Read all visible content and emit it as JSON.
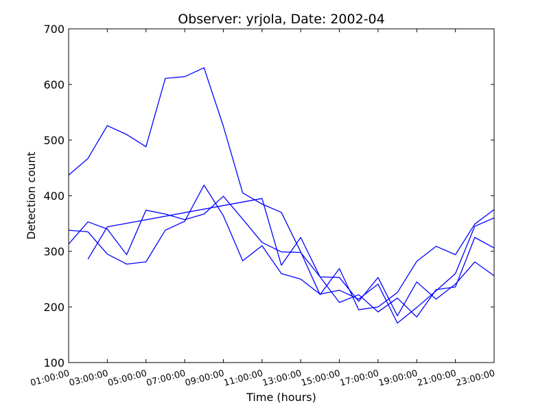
{
  "chart_data": {
    "type": "line",
    "title": "Observer: yrjola, Date: 2002-04",
    "xlabel": "Time (hours)",
    "ylabel": "Detection count",
    "ylim": [
      100,
      700
    ],
    "y_ticks": [
      "100",
      "200",
      "300",
      "400",
      "500",
      "600",
      "700"
    ],
    "x_ticks": [
      "01:00:00",
      "03:00:00",
      "05:00:00",
      "07:00:00",
      "09:00:00",
      "11:00:00",
      "13:00:00",
      "15:00:00",
      "17:00:00",
      "19:00:00",
      "21:00:00",
      "23:00:00"
    ],
    "x_hours_range": [
      1,
      23
    ],
    "grid": false,
    "line_color": "#0000ff",
    "series": [
      {
        "x_hours": [
          1,
          2,
          3,
          4,
          5,
          6,
          7,
          8,
          9,
          10,
          11,
          12,
          13,
          14,
          15,
          16,
          17,
          18,
          19,
          20,
          21,
          22,
          23
        ],
        "values": [
          437,
          467,
          526,
          510,
          488,
          611,
          614,
          630,
          525,
          405,
          385,
          370,
          299,
          222,
          269,
          195,
          200,
          226,
          282,
          309,
          294,
          349,
          375
        ]
      },
      {
        "x_hours": [
          1,
          2,
          3,
          4,
          5,
          6,
          7,
          8,
          9,
          10,
          11,
          12,
          13,
          14,
          15,
          16,
          17,
          18,
          19,
          20,
          21,
          22,
          23
        ],
        "values": [
          338,
          335,
          295,
          277,
          281,
          338,
          354,
          419,
          364,
          283,
          310,
          260,
          250,
          223,
          230,
          214,
          241,
          171,
          199,
          229,
          260,
          345,
          360
        ]
      },
      {
        "x_hours": [
          1,
          2,
          3,
          4,
          5,
          6,
          7,
          8,
          9,
          10,
          11,
          12,
          13,
          14,
          15,
          16,
          17,
          18,
          19,
          20,
          21,
          22,
          23
        ],
        "values": [
          313,
          353,
          340,
          294,
          374,
          367,
          357,
          367,
          399,
          358,
          316,
          299,
          298,
          254,
          208,
          222,
          191,
          216,
          182,
          231,
          236,
          325,
          306
        ]
      },
      {
        "x_hours": [
          2,
          3,
          11,
          12,
          13,
          14,
          15,
          16,
          17,
          18,
          19,
          20,
          21,
          22,
          23
        ],
        "values": [
          286,
          344,
          395,
          275,
          325,
          254,
          253,
          210,
          253,
          184,
          245,
          214,
          241,
          281,
          256
        ]
      }
    ]
  }
}
